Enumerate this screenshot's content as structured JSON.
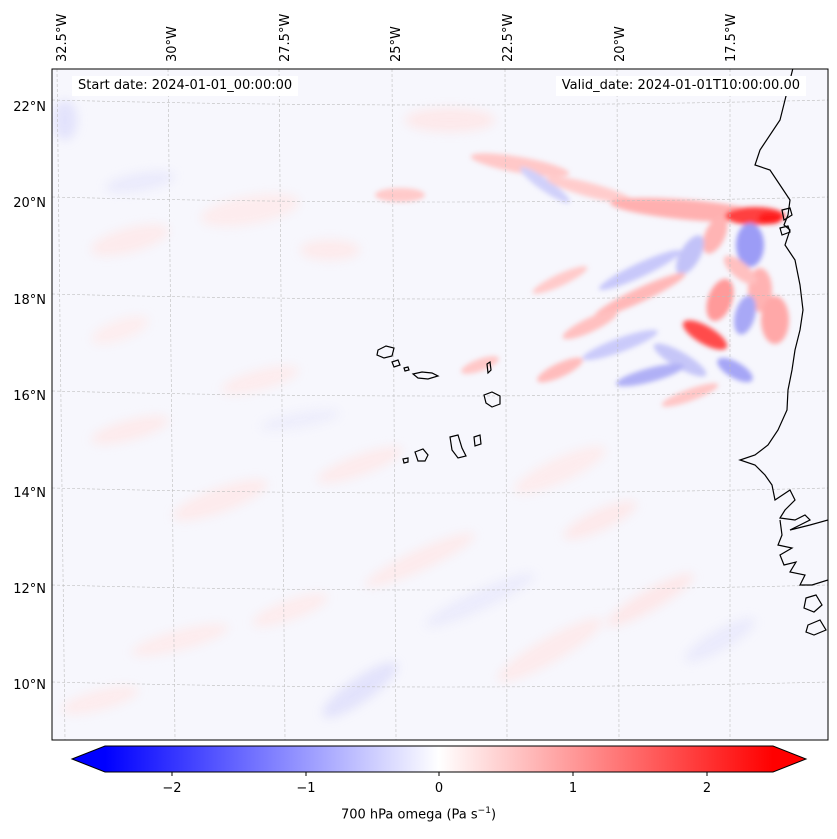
{
  "map": {
    "start_date": "Start date: 2024-01-01_00:00:00",
    "valid_date": "Valid_date: 2024-01-01T10:00:00.00",
    "lon_labels": [
      "32.5°W",
      "30°W",
      "27.5°W",
      "25°W",
      "22.5°W",
      "20°W",
      "17.5°W"
    ],
    "lat_labels": [
      "22°N",
      "20°N",
      "18°N",
      "16°N",
      "14°N",
      "12°N",
      "10°N"
    ],
    "variable": "700 hPa omega",
    "colormap": "bwr",
    "gridlines": true,
    "coastline_color": "#000000"
  },
  "colorbar": {
    "ticks": [
      "−2",
      "−1",
      "0",
      "1",
      "2"
    ],
    "label_text": "700 hPa omega (Pa s",
    "label_sup": "−1",
    "label_close": ")",
    "min_color": "#0000ff",
    "mid_color": "#ffffff",
    "max_color": "#ff0000",
    "range": [
      -2.5,
      2.5
    ],
    "extend": "both"
  }
}
